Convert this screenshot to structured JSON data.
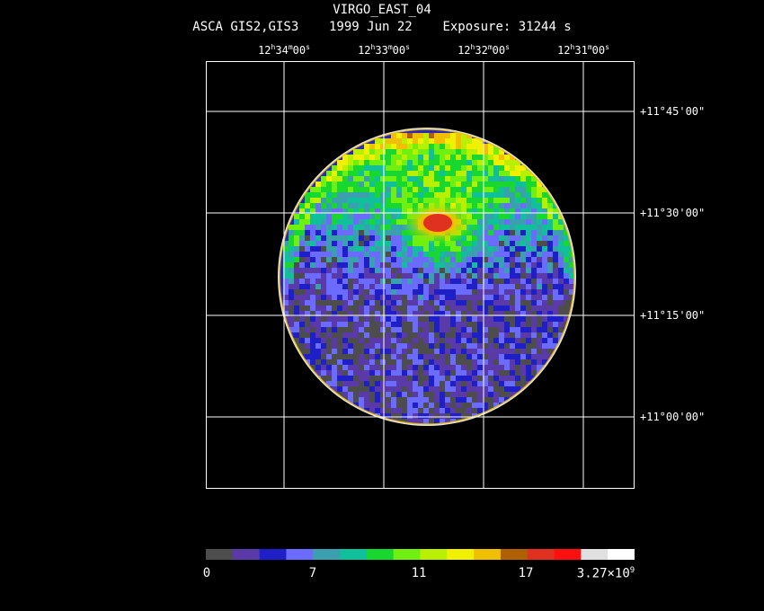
{
  "header": {
    "title": "VIRGO_EAST_04",
    "instrument": "ASCA GIS2,GIS3",
    "date": "1999 Jun 22",
    "exposure": "Exposure: 31244 s"
  },
  "ra_labels": [
    {
      "h": "12",
      "m": "34",
      "s": "00"
    },
    {
      "h": "12",
      "m": "33",
      "s": "00"
    },
    {
      "h": "12",
      "m": "32",
      "s": "00"
    },
    {
      "h": "12",
      "m": "31",
      "s": "00"
    }
  ],
  "dec_labels": [
    "+11°45'00\"",
    "+11°30'00\"",
    "+11°15'00\"",
    "+11°00'00\""
  ],
  "colorbar": {
    "colors": [
      "#4d4d4d",
      "#5a3aa8",
      "#1f1fc8",
      "#6b6bff",
      "#3aa0b0",
      "#10c09a",
      "#18d830",
      "#70f010",
      "#b8f000",
      "#f0f000",
      "#f0c000",
      "#b06000",
      "#e03020",
      "#ff1010",
      "#e0e0e0",
      "#ffffff"
    ],
    "labels": [
      {
        "text": "0"
      },
      {
        "text": "7"
      },
      {
        "text": "11"
      },
      {
        "text": "17"
      },
      {
        "text": "3.27×10",
        "sup": "9"
      }
    ]
  }
}
